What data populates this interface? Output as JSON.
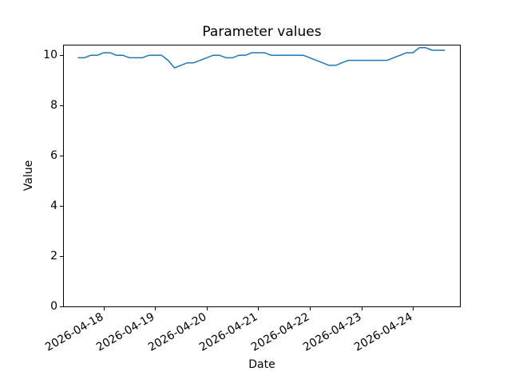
{
  "figure": {
    "title": "Parameter values",
    "xlabel": "Date",
    "ylabel": "Value"
  },
  "chart_data": {
    "type": "line",
    "title": "Parameter values",
    "xlabel": "Date",
    "ylabel": "Value",
    "line_color": "#1f77b4",
    "grid": "off",
    "legend": "none",
    "ylim": [
      0,
      10.39
    ],
    "y_ticks": [
      0,
      2,
      4,
      6,
      8,
      10
    ],
    "y_tick_labels": [
      "0",
      "2",
      "4",
      "6",
      "8",
      "10"
    ],
    "x_tick_labels": [
      "2026-04-18",
      "2026-04-19",
      "2026-04-20",
      "2026-04-21",
      "2026-04-22",
      "2026-04-23",
      "2026-04-24"
    ],
    "x_interval_hours": 3,
    "x": [
      "2026-04-17T12:00",
      "2026-04-17T15:00",
      "2026-04-17T18:00",
      "2026-04-17T21:00",
      "2026-04-18T00:00",
      "2026-04-18T03:00",
      "2026-04-18T06:00",
      "2026-04-18T09:00",
      "2026-04-18T12:00",
      "2026-04-18T15:00",
      "2026-04-18T18:00",
      "2026-04-18T21:00",
      "2026-04-19T00:00",
      "2026-04-19T03:00",
      "2026-04-19T06:00",
      "2026-04-19T09:00",
      "2026-04-19T12:00",
      "2026-04-19T15:00",
      "2026-04-19T18:00",
      "2026-04-19T21:00",
      "2026-04-20T00:00",
      "2026-04-20T03:00",
      "2026-04-20T06:00",
      "2026-04-20T09:00",
      "2026-04-20T12:00",
      "2026-04-20T15:00",
      "2026-04-20T18:00",
      "2026-04-20T21:00",
      "2026-04-21T00:00",
      "2026-04-21T03:00",
      "2026-04-21T06:00",
      "2026-04-21T09:00",
      "2026-04-21T12:00",
      "2026-04-21T15:00",
      "2026-04-21T18:00",
      "2026-04-21T21:00",
      "2026-04-22T00:00",
      "2026-04-22T03:00",
      "2026-04-22T06:00",
      "2026-04-22T09:00",
      "2026-04-22T12:00",
      "2026-04-22T15:00",
      "2026-04-22T18:00",
      "2026-04-22T21:00",
      "2026-04-23T00:00",
      "2026-04-23T03:00",
      "2026-04-23T06:00",
      "2026-04-23T09:00",
      "2026-04-23T12:00",
      "2026-04-23T15:00",
      "2026-04-23T18:00",
      "2026-04-23T21:00",
      "2026-04-24T00:00",
      "2026-04-24T03:00",
      "2026-04-24T06:00",
      "2026-04-24T09:00",
      "2026-04-24T12:00",
      "2026-04-24T15:00"
    ],
    "values": [
      9.9,
      9.9,
      10.0,
      10.0,
      10.1,
      10.1,
      10.0,
      10.0,
      9.9,
      9.9,
      9.9,
      10.0,
      10.0,
      10.0,
      9.8,
      9.5,
      9.6,
      9.7,
      9.7,
      9.8,
      9.9,
      10.0,
      10.0,
      9.9,
      9.9,
      10.0,
      10.0,
      10.1,
      10.1,
      10.1,
      10.0,
      10.0,
      10.0,
      10.0,
      10.0,
      10.0,
      9.9,
      9.8,
      9.7,
      9.6,
      9.6,
      9.7,
      9.8,
      9.8,
      9.8,
      9.8,
      9.8,
      9.8,
      9.8,
      9.9,
      10.0,
      10.1,
      10.1,
      10.3,
      10.3,
      10.2,
      10.2,
      10.2
    ]
  }
}
